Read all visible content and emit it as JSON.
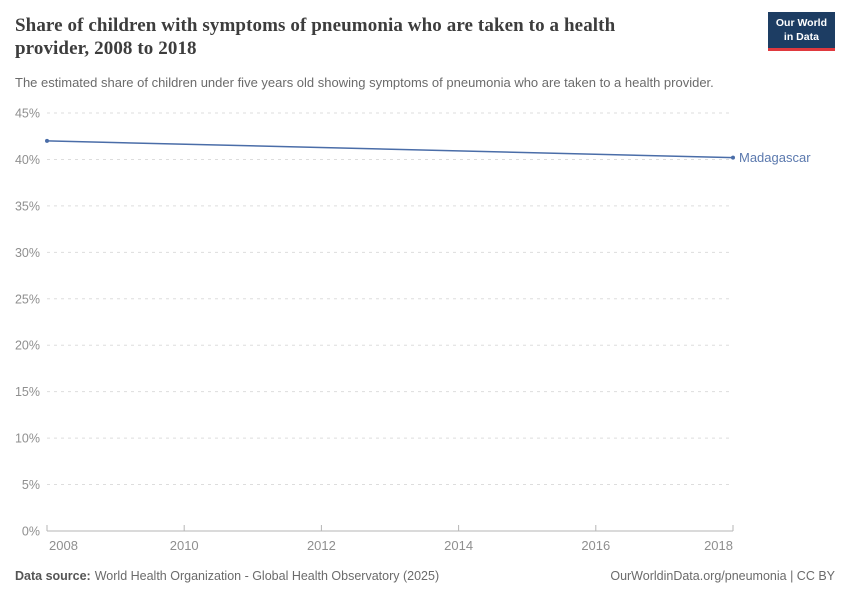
{
  "header": {
    "title": "Share of children with symptoms of pneumonia who are taken to a health provider, 2008 to 2018",
    "subtitle": "The estimated share of children under five years old showing symptoms of pneumonia who are taken to a health provider.",
    "logo": {
      "line1": "Our World",
      "line2": "in Data"
    }
  },
  "chart_data": {
    "type": "line",
    "title": "Share of children with symptoms of pneumonia who are taken to a health provider, 2008 to 2018",
    "x": [
      2008,
      2018
    ],
    "series": [
      {
        "name": "Madagascar",
        "values": [
          42,
          40.2
        ]
      }
    ],
    "xlim": [
      2008,
      2018
    ],
    "ylim": [
      0,
      45
    ],
    "yticks": [
      0,
      5,
      10,
      15,
      20,
      25,
      30,
      35,
      40,
      45
    ],
    "ytick_suffix": "%",
    "xticks": [
      2008,
      2010,
      2012,
      2014,
      2016,
      2018
    ],
    "grid": "horizontal-dashed",
    "legend": "inline-end-label",
    "xlabel": "",
    "ylabel": ""
  },
  "footer": {
    "datasource_label": "Data source:",
    "datasource_text": "World Health Organization - Global Health Observatory (2025)",
    "right_text": "OurWorldinData.org/pneumonia | CC BY"
  },
  "colors": {
    "line": "#4a6da8",
    "entity_label": "#5b79ae",
    "title": "#3d3d3d",
    "subtitle": "#6b6b6b",
    "tick_label": "#8f8f8f",
    "gridline": "#dddddd",
    "axis": "#b5b5b5",
    "footer_text": "#6b6b6b",
    "logo_bg": "#1d3d63",
    "logo_accent": "#e0393e"
  }
}
